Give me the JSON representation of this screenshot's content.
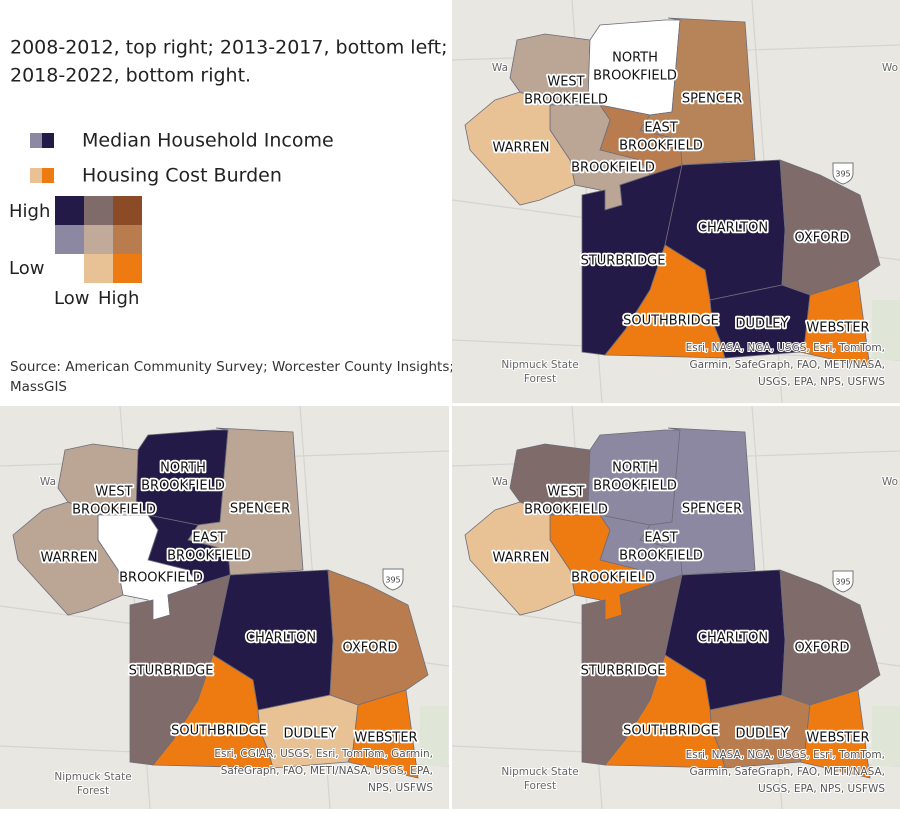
{
  "note": [
    "2008-2012, top right; 2013-2017, bottom left;",
    "2018-2022, bottom right."
  ],
  "legend": {
    "income": "Median Household Income",
    "burden": "Housing Cost Burden",
    "y_high": "High",
    "y_low": "Low",
    "x_low": "Low",
    "x_high": "High"
  },
  "source": [
    "Source: American Community Survey; Worcester County Insights;",
    "MassGIS"
  ],
  "maps": [
    {
      "period": "top-right",
      "towns": [
        {
          "name": [
            "WEST",
            "BROOKFIELD"
          ],
          "color": "#bba595"
        },
        {
          "name": [
            "NORTH",
            "BROOKFIELD"
          ],
          "color": "#ffffff"
        },
        {
          "name": [
            "SPENCER"
          ],
          "color": "#b7845a"
        },
        {
          "name": [
            "EAST",
            "BROOKFIELD"
          ],
          "color": "#b97c4e"
        },
        {
          "name": [
            "BROOKFIELD"
          ],
          "color": "#bba595"
        },
        {
          "name": [
            "WARREN"
          ],
          "color": "#e8c295"
        },
        {
          "name": [
            "STURBRIDGE"
          ],
          "color": "#241a47"
        },
        {
          "name": [
            "CHARLTON"
          ],
          "color": "#241a47"
        },
        {
          "name": [
            "OXFORD"
          ],
          "color": "#806b6b"
        },
        {
          "name": [
            "SOUTHBRIDGE"
          ],
          "color": "#ee7a12"
        },
        {
          "name": [
            "DUDLEY"
          ],
          "color": "#241a47"
        },
        {
          "name": [
            "WEBSTER"
          ],
          "color": "#ee7a12"
        }
      ],
      "attribution": [
        "Esri, NASA, NGA, USGS, Esri, TomTom,",
        "Garmin, SafeGraph, FAO, METI/NASA,",
        "USGS, EPA, NPS, USFWS"
      ],
      "places": {
        "forest": [
          "Nipmuck State",
          "Forest"
        ],
        "shield": "395",
        "west_edge": "Wa",
        "east_edge": "Wo"
      }
    },
    {
      "period": "bottom-left",
      "towns": [
        {
          "name": [
            "WEST",
            "BROOKFIELD"
          ],
          "color": "#bba595"
        },
        {
          "name": [
            "NORTH",
            "BROOKFIELD"
          ],
          "color": "#241a47"
        },
        {
          "name": [
            "SPENCER"
          ],
          "color": "#bba595"
        },
        {
          "name": [
            "EAST",
            "BROOKFIELD"
          ],
          "color": "#241a47"
        },
        {
          "name": [
            "BROOKFIELD"
          ],
          "color": "#ffffff"
        },
        {
          "name": [
            "WARREN"
          ],
          "color": "#bba595"
        },
        {
          "name": [
            "STURBRIDGE"
          ],
          "color": "#806b6b"
        },
        {
          "name": [
            "CHARLTON"
          ],
          "color": "#241a47"
        },
        {
          "name": [
            "OXFORD"
          ],
          "color": "#b97c4e"
        },
        {
          "name": [
            "SOUTHBRIDGE"
          ],
          "color": "#ee7a12"
        },
        {
          "name": [
            "DUDLEY"
          ],
          "color": "#e8c295"
        },
        {
          "name": [
            "WEBSTER"
          ],
          "color": "#ee7a12"
        }
      ],
      "attribution": [
        "Esri, CGIAR, USGS, Esri, TomTom, Garmin,",
        "SafeGraph, FAO, METI/NASA, USGS, EPA,",
        "NPS, USFWS"
      ],
      "places": {
        "forest": [
          "Nipmuck State",
          "Forest"
        ],
        "shield": "395",
        "west_edge": "Wa"
      }
    },
    {
      "period": "bottom-right",
      "towns": [
        {
          "name": [
            "WEST",
            "BROOKFIELD"
          ],
          "color": "#806b6b"
        },
        {
          "name": [
            "NORTH",
            "BROOKFIELD"
          ],
          "color": "#8d88a1"
        },
        {
          "name": [
            "SPENCER"
          ],
          "color": "#8d88a1"
        },
        {
          "name": [
            "EAST",
            "BROOKFIELD"
          ],
          "color": "#8d88a1"
        },
        {
          "name": [
            "BROOKFIELD"
          ],
          "color": "#ee7a12"
        },
        {
          "name": [
            "WARREN"
          ],
          "color": "#e8c295"
        },
        {
          "name": [
            "STURBRIDGE"
          ],
          "color": "#806b6b"
        },
        {
          "name": [
            "CHARLTON"
          ],
          "color": "#241a47"
        },
        {
          "name": [
            "OXFORD"
          ],
          "color": "#806b6b"
        },
        {
          "name": [
            "SOUTHBRIDGE"
          ],
          "color": "#ee7a12"
        },
        {
          "name": [
            "DUDLEY"
          ],
          "color": "#b97c4e"
        },
        {
          "name": [
            "WEBSTER"
          ],
          "color": "#ee7a12"
        }
      ],
      "attribution": [
        "Esri, NASA, NGA, USGS, Esri, TomTom,",
        "Garmin, SafeGraph, FAO, METI/NASA,",
        "USGS, EPA, NPS, USFWS"
      ],
      "places": {
        "forest": [
          "Nipmuck State",
          "Forest"
        ],
        "shield": "395",
        "west_edge": "Wa",
        "east_edge": "Wo"
      }
    }
  ]
}
